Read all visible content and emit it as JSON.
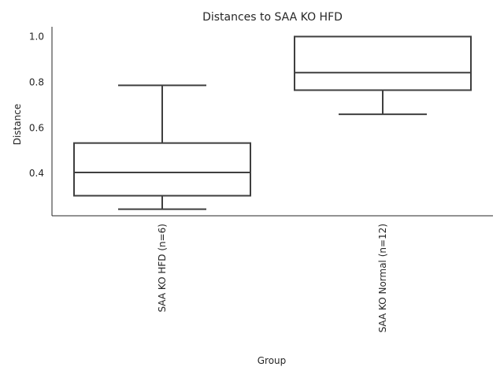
{
  "chart_data": {
    "type": "box",
    "title": "Distances to SAA KO HFD",
    "xlabel": "Group",
    "ylabel": "Distance",
    "categories": [
      "SAA KO HFD (n=6)",
      "SAA KO Normal (n=12)"
    ],
    "boxes": [
      {
        "category": "SAA KO HFD (n=6)",
        "whisker_low": 0.243,
        "q1": 0.302,
        "median": 0.404,
        "q3": 0.533,
        "whisker_high": 0.786
      },
      {
        "category": "SAA KO Normal (n=12)",
        "whisker_low": 0.659,
        "q1": 0.765,
        "median": 0.842,
        "q3": 1.0,
        "whisker_high": 1.0
      }
    ],
    "yticks": [
      "0.4",
      "0.6",
      "0.8",
      "1.0"
    ],
    "ytick_values": [
      0.4,
      0.6,
      0.8,
      1.0
    ],
    "ylim": [
      0.214,
      1.043
    ],
    "grid": false,
    "colors": {
      "line": "#3f3f3f",
      "box_fill": "#ffffff",
      "axis": "#262626"
    }
  }
}
